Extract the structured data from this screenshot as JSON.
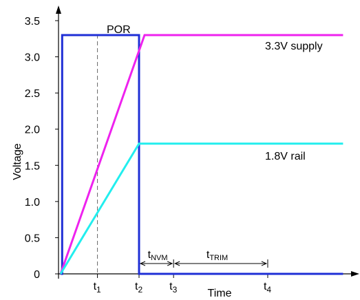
{
  "chart_data": {
    "type": "line",
    "xlabel": "Time",
    "ylabel": "Voltage",
    "ylim": [
      0,
      3.5
    ],
    "yticks": [
      "0",
      "0.5",
      "1.0",
      "1.5",
      "2.0",
      "2.5",
      "3.0",
      "3.5"
    ],
    "ytick_values": [
      0,
      0.5,
      1.0,
      1.5,
      2.0,
      2.5,
      3.0,
      3.5
    ],
    "time_markers": [
      {
        "label": "t",
        "sub": "1"
      },
      {
        "label": "t",
        "sub": "2"
      },
      {
        "label": "t",
        "sub": "3"
      },
      {
        "label": "t",
        "sub": "4"
      }
    ],
    "series": [
      {
        "name": "POR",
        "color": "#1f2fd6",
        "points": [
          [
            0,
            0
          ],
          [
            0.02,
            0
          ],
          [
            0.02,
            3.3
          ],
          [
            1.0,
            3.3
          ],
          [
            1.0,
            0
          ],
          [
            3.6,
            0
          ]
        ]
      },
      {
        "name": "3.3V supply",
        "color": "#ee22ee",
        "points": [
          [
            0,
            0
          ],
          [
            1.07,
            3.3
          ],
          [
            3.6,
            3.3
          ]
        ]
      },
      {
        "name": "1.8V rail",
        "color": "#22eeee",
        "points": [
          [
            0,
            0
          ],
          [
            1.0,
            1.8
          ],
          [
            3.6,
            1.8
          ]
        ]
      }
    ],
    "intervals": [
      {
        "label": "t",
        "sub": "NVM"
      },
      {
        "label": "t",
        "sub": "TRIM"
      }
    ]
  }
}
